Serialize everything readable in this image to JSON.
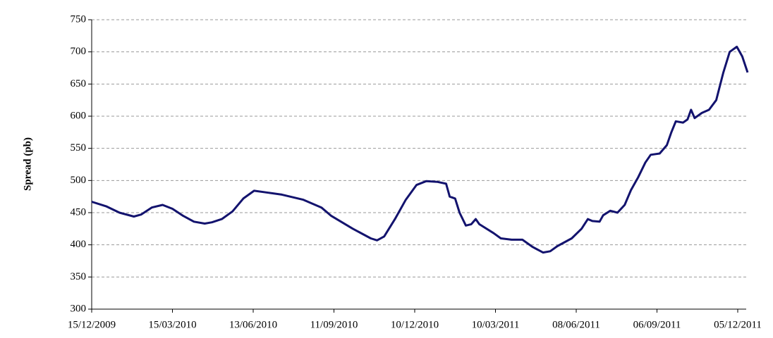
{
  "chart_data": {
    "type": "line",
    "y_label": "Spread (pb)",
    "x": [
      "15/12/2009",
      "31/12/2009",
      "15/01/2010",
      "31/01/2010",
      "08/02/2010",
      "20/02/2010",
      "04/03/2010",
      "15/03/2010",
      "27/03/2010",
      "08/04/2010",
      "20/04/2010",
      "28/04/2010",
      "09/05/2010",
      "21/05/2010",
      "02/06/2010",
      "14/06/2010",
      "30/06/2010",
      "15/07/2010",
      "08/08/2010",
      "28/08/2010",
      "08/09/2010",
      "02/10/2010",
      "22/10/2010",
      "29/10/2010",
      "06/11/2010",
      "18/11/2010",
      "30/11/2010",
      "12/12/2010",
      "23/12/2010",
      "04/01/2011",
      "14/01/2011",
      "18/01/2011",
      "24/01/2011",
      "29/01/2011",
      "05/02/2011",
      "11/02/2011",
      "16/02/2011",
      "20/02/2011",
      "08/03/2011",
      "16/03/2011",
      "28/03/2011",
      "09/04/2011",
      "20/04/2011",
      "02/05/2011",
      "10/05/2011",
      "18/05/2011",
      "03/06/2011",
      "14/06/2011",
      "21/06/2011",
      "26/06/2011",
      "04/07/2011",
      "08/07/2011",
      "16/07/2011",
      "24/07/2011",
      "01/08/2011",
      "08/08/2011",
      "16/08/2011",
      "24/08/2011",
      "30/08/2011",
      "09/09/2011",
      "17/09/2011",
      "22/09/2011",
      "27/09/2011",
      "05/10/2011",
      "10/10/2011",
      "14/10/2011",
      "18/10/2011",
      "26/10/2011",
      "03/11/2011",
      "11/11/2011",
      "19/11/2011",
      "26/11/2011",
      "04/12/2011",
      "10/12/2011",
      "16/12/2011"
    ],
    "series": [
      {
        "name": "Spread",
        "color": "#13136e",
        "values": [
          467,
          460,
          450,
          444,
          447,
          458,
          462,
          456,
          445,
          436,
          433,
          435,
          440,
          452,
          472,
          484,
          481,
          478,
          470,
          458,
          445,
          425,
          410,
          407,
          413,
          440,
          470,
          493,
          499,
          498,
          495,
          475,
          472,
          450,
          430,
          432,
          440,
          432,
          418,
          410,
          408,
          408,
          397,
          388,
          390,
          398,
          410,
          425,
          440,
          437,
          436,
          446,
          453,
          450,
          462,
          485,
          505,
          528,
          540,
          542,
          555,
          575,
          592,
          590,
          595,
          610,
          597,
          605,
          610,
          625,
          668,
          700,
          708,
          693,
          668
        ]
      }
    ],
    "xlim": [
      "15/12/2009",
      "16/12/2011"
    ],
    "xticks": [
      "15/12/2009",
      "15/03/2010",
      "13/06/2010",
      "11/09/2010",
      "10/12/2010",
      "10/03/2011",
      "08/06/2011",
      "06/09/2011",
      "05/12/2011"
    ],
    "ylim": [
      300,
      750
    ],
    "yticks": [
      300,
      350,
      400,
      450,
      500,
      550,
      600,
      650,
      700,
      750
    ],
    "grid": true
  }
}
